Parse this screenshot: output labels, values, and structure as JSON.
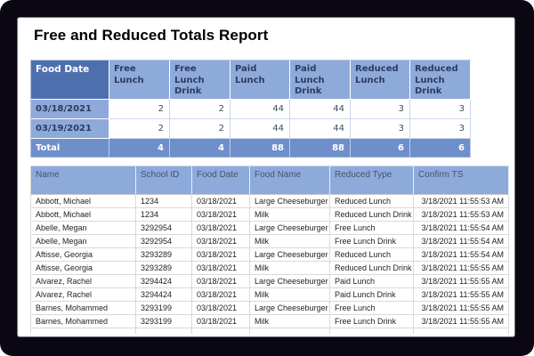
{
  "report": {
    "title": "Free and Reduced Totals Report"
  },
  "summary_table": {
    "columns": [
      "Food Date",
      "Free Lunch",
      "Free Lunch Drink",
      "Paid Lunch",
      "Paid Lunch Drink",
      "Reduced Lunch",
      "Reduced Lunch Drink"
    ],
    "rows": [
      {
        "food_date": "03/18/2021",
        "values": [
          "2",
          "2",
          "44",
          "44",
          "3",
          "3"
        ]
      },
      {
        "food_date": "03/19/2021",
        "values": [
          "2",
          "2",
          "44",
          "44",
          "3",
          "3"
        ]
      }
    ],
    "total": {
      "label": "Total",
      "values": [
        "4",
        "4",
        "88",
        "88",
        "6",
        "6"
      ]
    }
  },
  "detail_table": {
    "columns": [
      "Name",
      "School ID",
      "Food Date",
      "Food Name",
      "Reduced Type",
      "Confirm TS"
    ],
    "rows": [
      [
        "Abbott, Michael",
        "1234",
        "03/18/2021",
        "Large Cheeseburger",
        "Reduced Lunch",
        "3/18/2021 11:55:53 AM"
      ],
      [
        "Abbott, Michael",
        "1234",
        "03/18/2021",
        "Milk",
        "Reduced Lunch Drink",
        "3/18/2021 11:55:53 AM"
      ],
      [
        "Abelle, Megan",
        "3292954",
        "03/18/2021",
        "Large Cheeseburger",
        "Free Lunch",
        "3/18/2021 11:55:54 AM"
      ],
      [
        "Abelle, Megan",
        "3292954",
        "03/18/2021",
        "Milk",
        "Free Lunch Drink",
        "3/18/2021 11:55:54 AM"
      ],
      [
        "Aftisse, Georgia",
        "3293289",
        "03/18/2021",
        "Large Cheeseburger",
        "Reduced Lunch",
        "3/18/2021 11:55:54 AM"
      ],
      [
        "Aftisse, Georgia",
        "3293289",
        "03/18/2021",
        "Milk",
        "Reduced Lunch Drink",
        "3/18/2021 11:55:55 AM"
      ],
      [
        "Alvarez, Rachel",
        "3294424",
        "03/18/2021",
        "Large Cheeseburger",
        "Paid Lunch",
        "3/18/2021 11:55:55 AM"
      ],
      [
        "Alvarez, Rachel",
        "3294424",
        "03/18/2021",
        "Milk",
        "Paid Lunch Drink",
        "3/18/2021 11:55:55 AM"
      ],
      [
        "Barnes, Mohammed",
        "3293199",
        "03/18/2021",
        "Large Cheeseburger",
        "Free Lunch",
        "3/18/2021 11:55:55 AM"
      ],
      [
        "Barnes, Mohammed",
        "3293199",
        "03/18/2021",
        "Milk",
        "Free Lunch Drink",
        "3/18/2021 11:55:55 AM"
      ]
    ]
  },
  "colors": {
    "frame_bg": "#0b0712",
    "panel_bg": "#ffffff",
    "header_dark_blue": "#4d6fae",
    "header_light_blue": "#8eaadb",
    "total_row_blue": "#6f8fca",
    "summary_text_dark": "#2e3a5f",
    "detail_header_text": "#44546a",
    "white_cell_border": "#ccd6eb",
    "detail_border": "#d9d9d9"
  }
}
